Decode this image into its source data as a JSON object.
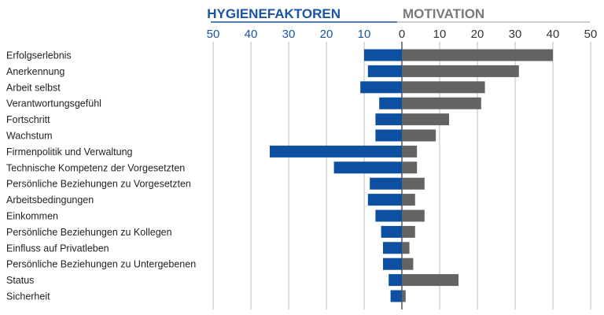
{
  "chart_data": {
    "type": "bar",
    "title_left": "HYGIENEFAKTOREN",
    "title_right": "MOTIVATION",
    "left_ticks": [
      "50",
      "40",
      "30",
      "20",
      "10"
    ],
    "right_ticks": [
      "0",
      "10",
      "20",
      "30",
      "40",
      "50"
    ],
    "xlim": [
      -50,
      50
    ],
    "grid": true,
    "categories": [
      "Erfolgserlebnis",
      "Anerkennung",
      "Arbeit selbst",
      "Verantwortungsgefühl",
      "Fortschritt",
      "Wachstum",
      "Firmenpolitik und Verwaltung",
      "Technische Kompetenz der Vorgesetzten",
      "Persönliche Beziehungen zu Vorgesetzten",
      "Arbeitsbedingungen",
      "Einkommen",
      "Persönliche Beziehungen zu Kollegen",
      "Einfluss auf Privatleben",
      "Persönliche Beziehungen zu Untergebenen",
      "Status",
      "Sicherheit"
    ],
    "series": [
      {
        "name": "HYGIENEFAKTOREN",
        "color": "#0d4fa0",
        "values": [
          10,
          9,
          11,
          6,
          7,
          7,
          35,
          18,
          8.5,
          9,
          7,
          5.5,
          5,
          5,
          3.5,
          3
        ]
      },
      {
        "name": "MOTIVATION",
        "color": "#636363",
        "values": [
          40,
          31,
          22,
          21,
          12.5,
          9,
          4,
          4,
          6,
          3.5,
          6,
          3.5,
          2,
          3,
          15,
          1
        ]
      }
    ]
  }
}
